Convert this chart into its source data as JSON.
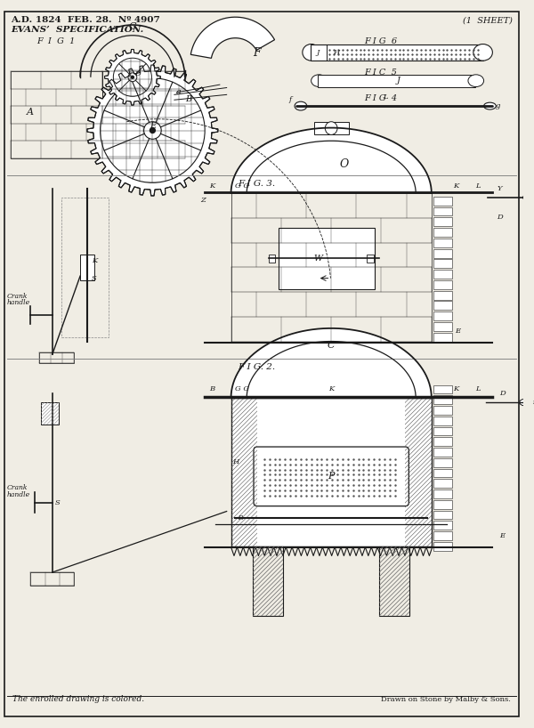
{
  "bg_color": "#f0ede4",
  "line_color": "#1a1a1a",
  "title_line1": "A.D. 1824  FEB. 28.  Nº 4907",
  "title_line2": "EVANS’  SPECIFICATION.",
  "sheet_label": "(1  SHEET)",
  "fig1_label": "F  I  G  1",
  "fig2_label": "F I G. 2.",
  "fig3_label": "F I G. 3.",
  "fig4_label": "F I G  4",
  "fig5_label": "F I C  5",
  "fig6_label": "F I G  6",
  "footer_left": "The enrolled drawing is colored.",
  "footer_right": "Drawn on Stone by Malby & Sons."
}
